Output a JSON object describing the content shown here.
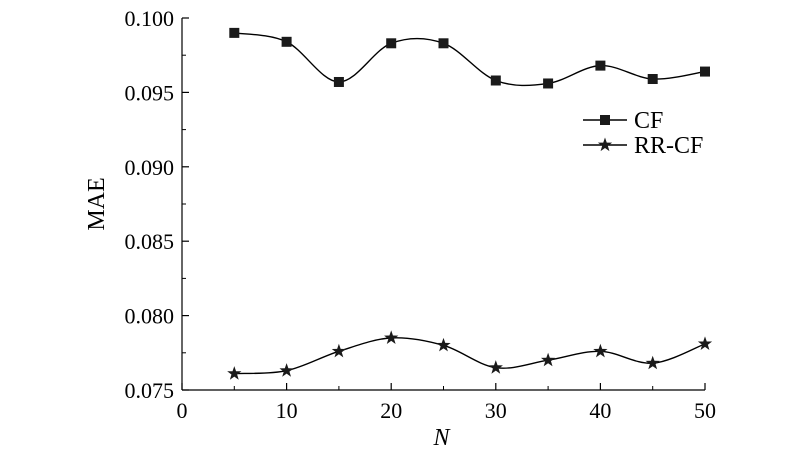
{
  "chart_data": {
    "type": "line",
    "xlabel": "N",
    "ylabel": "MAE",
    "xlim": [
      0,
      50
    ],
    "ylim": [
      0.075,
      0.1
    ],
    "x_ticks": [
      "0",
      "10",
      "20",
      "30",
      "40",
      "50"
    ],
    "y_ticks": [
      "0.075",
      "0.080",
      "0.085",
      "0.090",
      "0.095",
      "0.100"
    ],
    "grid": false,
    "legend_position": "right",
    "x": [
      5,
      10,
      15,
      20,
      25,
      30,
      35,
      40,
      45,
      50
    ],
    "series": [
      {
        "name": "CF",
        "marker": "square",
        "values": [
          0.099,
          0.0984,
          0.0957,
          0.0983,
          0.0983,
          0.0958,
          0.0956,
          0.0968,
          0.0959,
          0.0964
        ]
      },
      {
        "name": "RR-CF",
        "marker": "star",
        "values": [
          0.0761,
          0.0763,
          0.0776,
          0.0785,
          0.078,
          0.0765,
          0.077,
          0.0776,
          0.0768,
          0.0781
        ]
      }
    ],
    "colors": {
      "line": "#000000",
      "marker": "#1a1a1a"
    }
  }
}
